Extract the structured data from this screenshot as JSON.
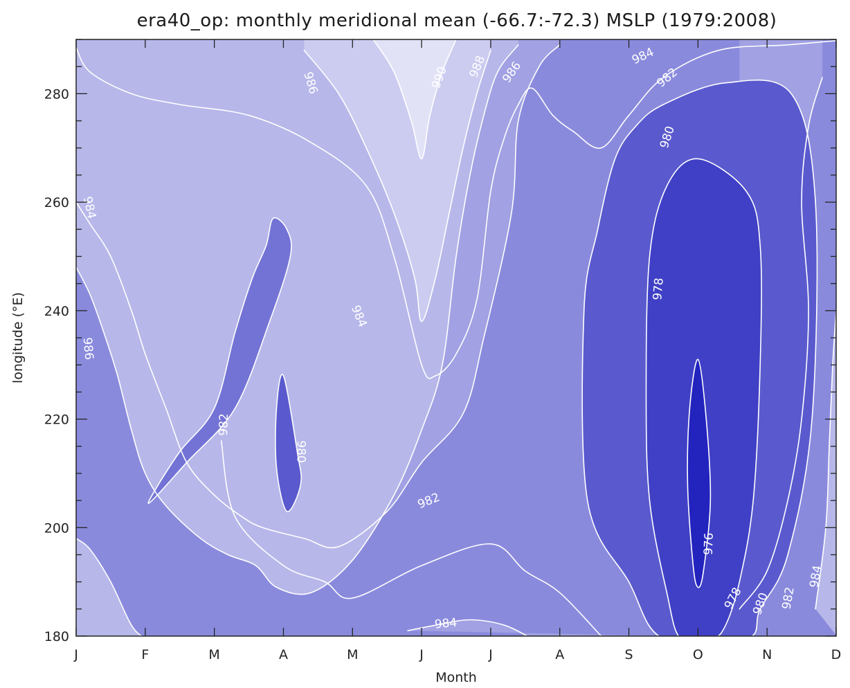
{
  "chart_data": {
    "type": "heatmap",
    "title": "era40_op: monthly meridional mean (-66.7:-72.3) MSLP (1979:2008)",
    "xlabel": "Month",
    "ylabel": "longitude (°E)",
    "x_categories": [
      "J",
      "F",
      "M",
      "A",
      "M",
      "J",
      "J",
      "A",
      "S",
      "O",
      "N",
      "D"
    ],
    "xlim": [
      1,
      12
    ],
    "ylim": [
      180,
      290
    ],
    "y_ticks": [
      180,
      200,
      220,
      240,
      260,
      280
    ],
    "levels": [
      976,
      978,
      980,
      982,
      984,
      986,
      988,
      990
    ],
    "colors": {
      "lowest": "#1010b8",
      "highest": "#ececfa",
      "contour": "#ffffff"
    },
    "contours": [
      {
        "level": 976,
        "label": "976",
        "closed": true,
        "points": [
          [
            10.0,
            231
          ],
          [
            10.12,
            220
          ],
          [
            10.18,
            205
          ],
          [
            10.08,
            192
          ],
          [
            10.0,
            189
          ],
          [
            9.93,
            193
          ],
          [
            9.85,
            208
          ],
          [
            9.88,
            222
          ]
        ]
      },
      {
        "level": 980,
        "label": "980",
        "closed": true,
        "points": [
          [
            4.0,
            228
          ],
          [
            4.2,
            214
          ],
          [
            4.25,
            208
          ],
          [
            4.05,
            203
          ],
          [
            3.9,
            211
          ],
          [
            3.9,
            222
          ]
        ]
      },
      {
        "level": 978,
        "label": "978",
        "closed": true,
        "points": [
          [
            10.0,
            268
          ],
          [
            10.7,
            262
          ],
          [
            10.9,
            252
          ],
          [
            10.9,
            230
          ],
          [
            10.8,
            205
          ],
          [
            10.6,
            190
          ],
          [
            10.4,
            182
          ],
          [
            10.2,
            179.5
          ],
          [
            9.75,
            179.5
          ],
          [
            9.55,
            188
          ],
          [
            9.3,
            205
          ],
          [
            9.25,
            225
          ],
          [
            9.3,
            250
          ],
          [
            9.55,
            263
          ]
        ]
      },
      {
        "level": 980,
        "label": "980",
        "closed": true,
        "points": [
          [
            9.5,
            278
          ],
          [
            10.4,
            282
          ],
          [
            11.35,
            280
          ],
          [
            11.7,
            260
          ],
          [
            11.65,
            220
          ],
          [
            11.3,
            195
          ],
          [
            10.9,
            185
          ],
          [
            10.7,
            179.5
          ],
          [
            9.5,
            179.5
          ],
          [
            9.0,
            190
          ],
          [
            8.4,
            205
          ],
          [
            8.35,
            240
          ],
          [
            8.55,
            255
          ],
          [
            8.8,
            268
          ],
          [
            9.1,
            274
          ]
        ]
      },
      {
        "level": 982,
        "label": "982",
        "closed": false,
        "points": [
          [
            1.0,
            288.5
          ],
          [
            1.2,
            284
          ],
          [
            1.8,
            280
          ],
          [
            2.5,
            278
          ],
          [
            3.5,
            276
          ],
          [
            4.4,
            271
          ],
          [
            5.2,
            263
          ],
          [
            5.6,
            250
          ],
          [
            6.0,
            230
          ],
          [
            6.2,
            228
          ],
          [
            6.5,
            232
          ],
          [
            6.8,
            242
          ],
          [
            7.0,
            262
          ],
          [
            7.2,
            272
          ],
          [
            7.4,
            278
          ],
          [
            7.6,
            281
          ],
          [
            7.9,
            276
          ],
          [
            8.2,
            273
          ],
          [
            8.6,
            270
          ],
          [
            9.0,
            276
          ],
          [
            9.5,
            283
          ],
          [
            10.3,
            288
          ],
          [
            11.3,
            289
          ],
          [
            12.2,
            290
          ]
        ]
      },
      {
        "level": 982,
        "label": "982",
        "closed": true,
        "points": [
          [
            2.1,
            205
          ],
          [
            2.6,
            212
          ],
          [
            3.3,
            222
          ],
          [
            3.8,
            238
          ],
          [
            4.1,
            250
          ],
          [
            4.05,
            255
          ],
          [
            3.85,
            257
          ],
          [
            3.75,
            252
          ],
          [
            3.55,
            246
          ],
          [
            3.3,
            236
          ],
          [
            3.0,
            222
          ],
          [
            2.5,
            214
          ],
          [
            2.1,
            206
          ]
        ]
      },
      {
        "level": 982,
        "label": "982",
        "closed": false,
        "points": [
          [
            3.1,
            216
          ],
          [
            3.3,
            202
          ],
          [
            4.0,
            193
          ],
          [
            4.6,
            190
          ],
          [
            5.0,
            187
          ],
          [
            6.0,
            193
          ],
          [
            7.0,
            197
          ],
          [
            7.5,
            192
          ],
          [
            8.0,
            188
          ],
          [
            8.6,
            180
          ]
        ]
      },
      {
        "level": 984,
        "label": "984",
        "closed": false,
        "points": [
          [
            1.0,
            260
          ],
          [
            1.2,
            256
          ],
          [
            1.5,
            250
          ],
          [
            1.8,
            240
          ],
          [
            2.0,
            232
          ],
          [
            2.3,
            222
          ],
          [
            2.6,
            212
          ],
          [
            3.0,
            206
          ],
          [
            3.4,
            202
          ],
          [
            3.7,
            200
          ],
          [
            4.3,
            198
          ],
          [
            4.8,
            196.5
          ],
          [
            5.5,
            203
          ],
          [
            6.0,
            212
          ],
          [
            6.6,
            221
          ],
          [
            6.9,
            235
          ],
          [
            7.3,
            258
          ],
          [
            7.4,
            275
          ],
          [
            7.7,
            285
          ],
          [
            8.0,
            289
          ]
        ]
      },
      {
        "level": 984,
        "label": "984",
        "closed": false,
        "points": [
          [
            5.8,
            181
          ],
          [
            6.2,
            182
          ],
          [
            6.7,
            183
          ],
          [
            7.2,
            182
          ],
          [
            7.6,
            179.5
          ]
        ]
      },
      {
        "level": 984,
        "label": "984",
        "closed": false,
        "points": [
          [
            10.6,
            185
          ],
          [
            11.0,
            192
          ],
          [
            11.3,
            205
          ],
          [
            11.5,
            220
          ],
          [
            11.6,
            240
          ],
          [
            11.5,
            260
          ],
          [
            11.6,
            274
          ],
          [
            11.8,
            283
          ]
        ]
      },
      {
        "level": 986,
        "label": "986",
        "closed": false,
        "points": [
          [
            1.0,
            248
          ],
          [
            1.2,
            243
          ],
          [
            1.4,
            236
          ],
          [
            1.6,
            228
          ],
          [
            1.8,
            218
          ],
          [
            2.0,
            210
          ],
          [
            2.3,
            204
          ],
          [
            2.8,
            198
          ],
          [
            3.2,
            195
          ],
          [
            3.6,
            193
          ],
          [
            3.9,
            189
          ],
          [
            4.4,
            188
          ],
          [
            5.0,
            194
          ],
          [
            5.6,
            206
          ],
          [
            6.0,
            218
          ],
          [
            6.3,
            230
          ],
          [
            6.5,
            250
          ],
          [
            6.7,
            265
          ],
          [
            6.9,
            276
          ],
          [
            7.1,
            284
          ],
          [
            7.4,
            289
          ]
        ]
      },
      {
        "level": 986,
        "label": "986",
        "closed": false,
        "points": [
          [
            11.7,
            185
          ],
          [
            11.85,
            200
          ],
          [
            11.9,
            215
          ],
          [
            11.95,
            230
          ],
          [
            12.0,
            240
          ]
        ]
      },
      {
        "level": 986,
        "label": "986",
        "closed": false,
        "points": [
          [
            1.0,
            198
          ],
          [
            1.2,
            196
          ],
          [
            1.5,
            190
          ],
          [
            1.8,
            182
          ],
          [
            2.0,
            179.5
          ]
        ]
      },
      {
        "level": 988,
        "label": "988",
        "closed": false,
        "points": [
          [
            4.3,
            288
          ],
          [
            4.8,
            280
          ],
          [
            5.2,
            270
          ],
          [
            5.6,
            258
          ],
          [
            5.9,
            246
          ],
          [
            6.0,
            238
          ],
          [
            6.2,
            246
          ],
          [
            6.4,
            258
          ],
          [
            6.6,
            270
          ],
          [
            6.8,
            280
          ],
          [
            7.0,
            288
          ]
        ]
      },
      {
        "level": 990,
        "label": "990",
        "closed": false,
        "points": [
          [
            5.3,
            290
          ],
          [
            5.6,
            284
          ],
          [
            5.85,
            275
          ],
          [
            6.0,
            268
          ],
          [
            6.12,
            276
          ],
          [
            6.3,
            284
          ],
          [
            6.5,
            290
          ]
        ]
      }
    ],
    "contour_labels": [
      {
        "text": "984",
        "x": 1.2,
        "y": 259,
        "rot": 78
      },
      {
        "text": "986",
        "x": 1.18,
        "y": 233,
        "rot": 85
      },
      {
        "text": "982",
        "x": 3.13,
        "y": 219,
        "rot": -88
      },
      {
        "text": "980",
        "x": 4.26,
        "y": 214,
        "rot": 90
      },
      {
        "text": "984",
        "x": 5.1,
        "y": 239,
        "rot": 68
      },
      {
        "text": "982",
        "x": 6.1,
        "y": 205,
        "rot": -22
      },
      {
        "text": "984",
        "x": 6.35,
        "y": 182.4,
        "rot": -5
      },
      {
        "text": "986",
        "x": 4.4,
        "y": 282,
        "rot": 74
      },
      {
        "text": "990",
        "x": 6.25,
        "y": 283,
        "rot": -70
      },
      {
        "text": "988",
        "x": 6.8,
        "y": 285,
        "rot": -68
      },
      {
        "text": "986",
        "x": 7.3,
        "y": 284,
        "rot": -55
      },
      {
        "text": "984",
        "x": 9.2,
        "y": 287,
        "rot": -25
      },
      {
        "text": "982",
        "x": 9.55,
        "y": 283,
        "rot": -40
      },
      {
        "text": "980",
        "x": 9.55,
        "y": 272,
        "rot": -72
      },
      {
        "text": "978",
        "x": 9.42,
        "y": 244,
        "rot": -85
      },
      {
        "text": "976",
        "x": 10.15,
        "y": 197,
        "rot": -88
      },
      {
        "text": "978",
        "x": 10.5,
        "y": 187,
        "rot": -62
      },
      {
        "text": "980",
        "x": 10.9,
        "y": 186,
        "rot": -70
      },
      {
        "text": "982",
        "x": 11.3,
        "y": 187,
        "rot": -80
      },
      {
        "text": "984",
        "x": 11.7,
        "y": 191,
        "rot": -80
      }
    ]
  }
}
